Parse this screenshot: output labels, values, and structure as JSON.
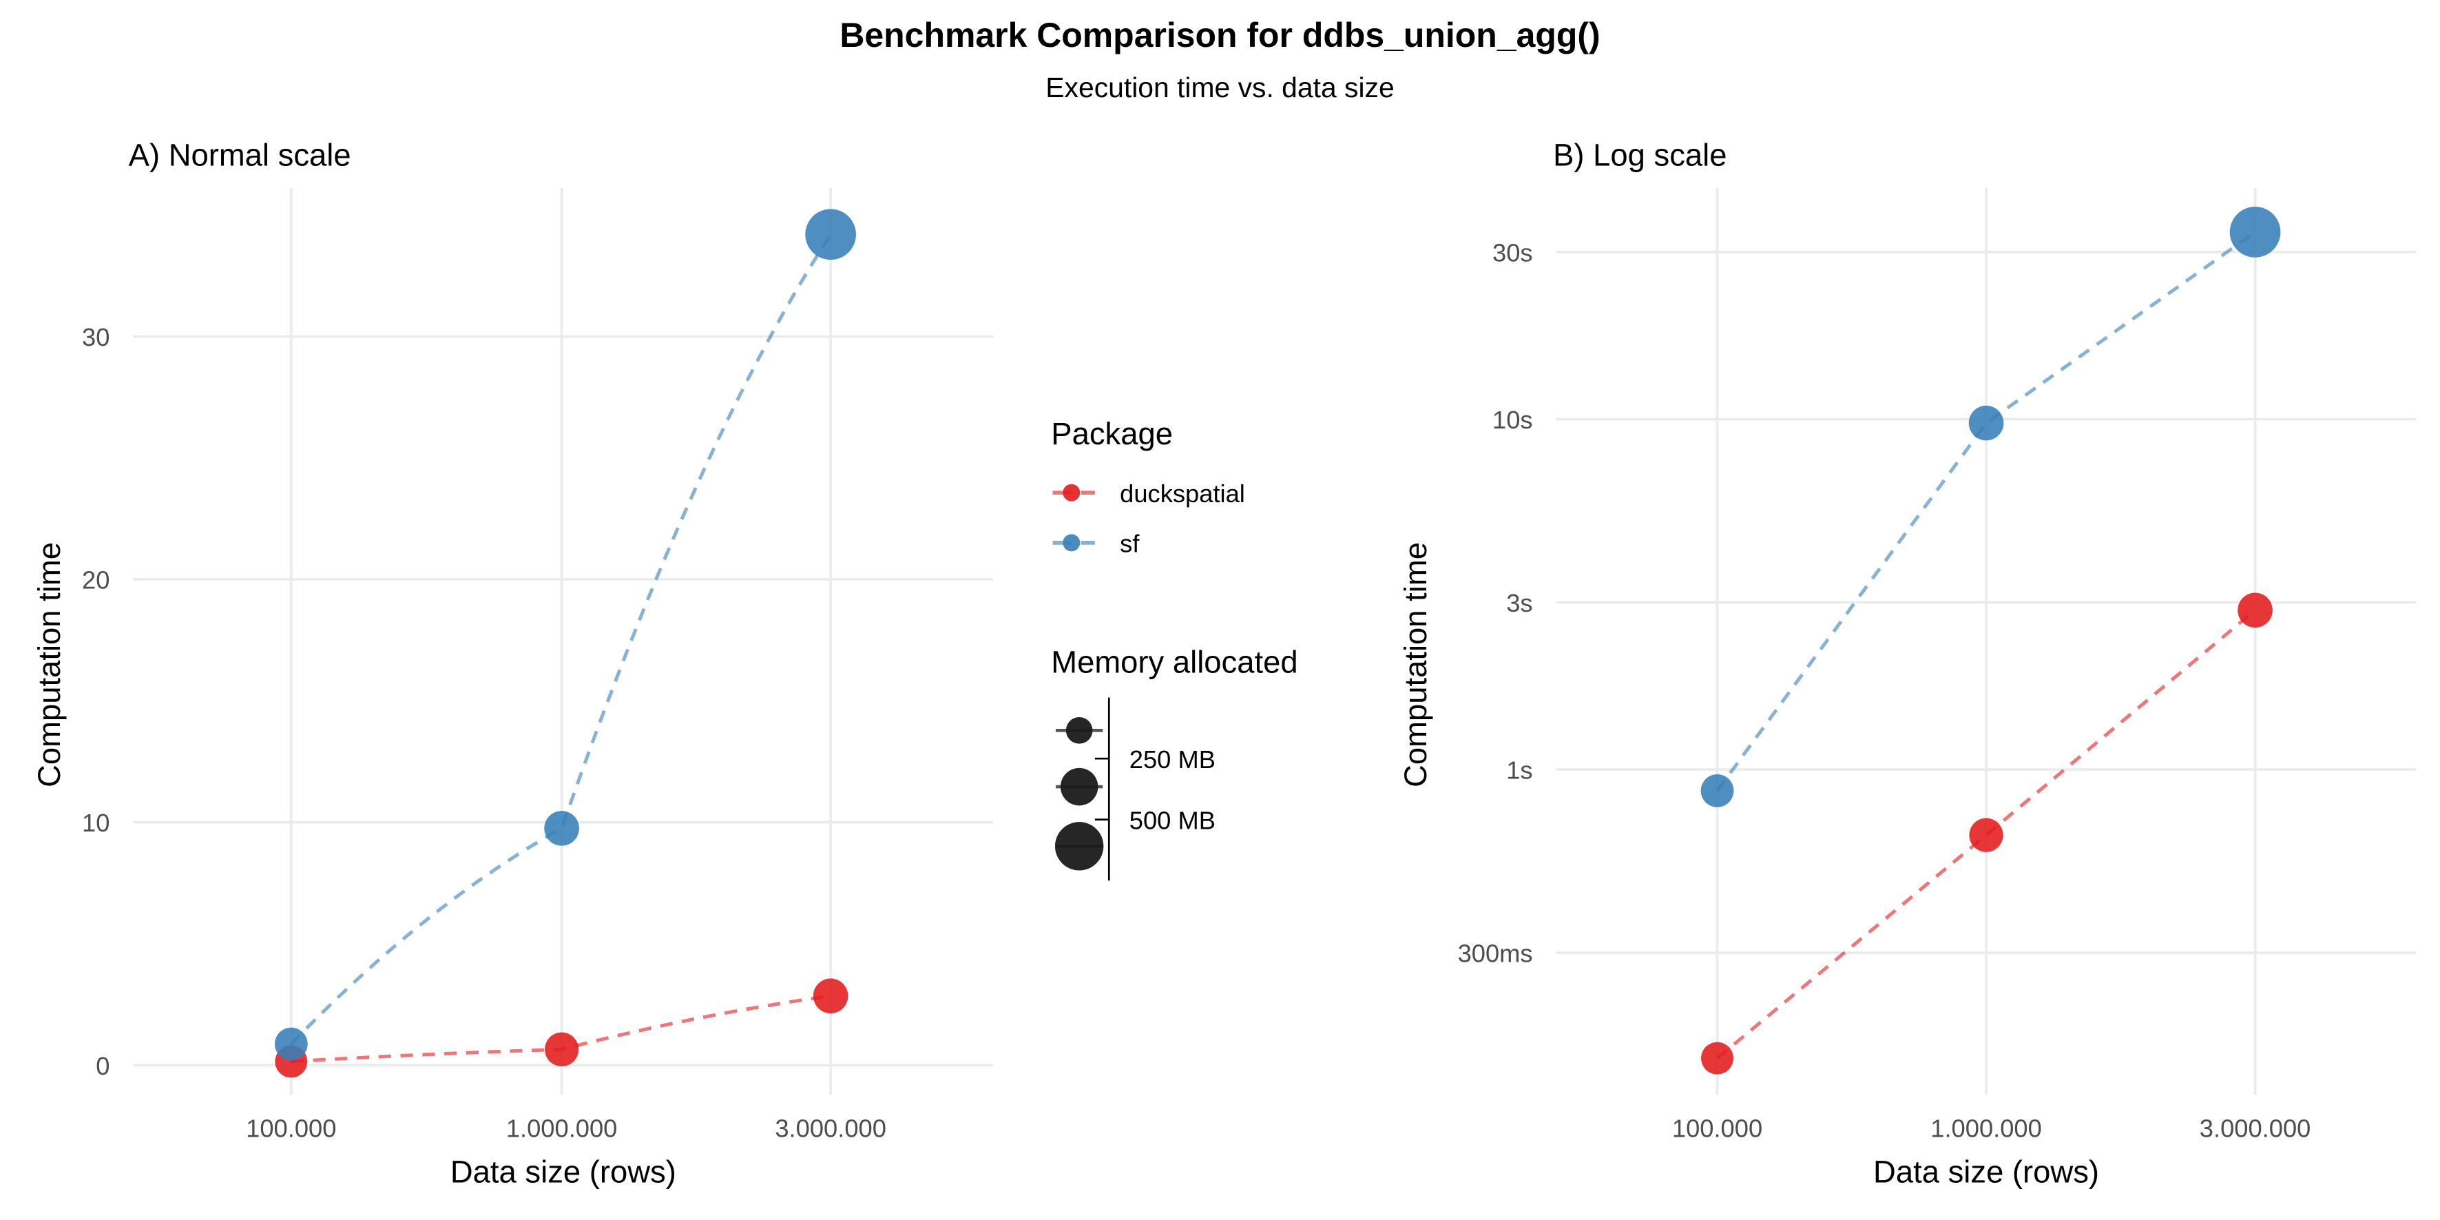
{
  "title": "Benchmark Comparison for ddbs_union_agg()",
  "subtitle": "Execution time vs. data size",
  "colors": {
    "duckspatial": "#E41A1C",
    "sf": "#377EB8"
  },
  "chart_data": [
    {
      "type": "line",
      "title": "A) Normal scale",
      "xlabel": "Data size (rows)",
      "ylabel": "Computation time",
      "x_categories": [
        "100.000",
        "1.000.000",
        "3.000.000"
      ],
      "y_scale": "linear",
      "ylim": [
        -1.6,
        35.5
      ],
      "y_ticks": [
        {
          "value": 0,
          "label": "0"
        },
        {
          "value": 10,
          "label": "10"
        },
        {
          "value": 20,
          "label": "20"
        },
        {
          "value": 30,
          "label": "30"
        }
      ],
      "grid": true,
      "series": [
        {
          "name": "duckspatial",
          "values_s": [
            0.15,
            0.65,
            2.85
          ],
          "memory_mb": [
            60,
            90,
            110
          ]
        },
        {
          "name": "sf",
          "values_s": [
            0.87,
            9.75,
            34.2
          ],
          "memory_mb": [
            70,
            110,
            750
          ]
        }
      ]
    },
    {
      "type": "line",
      "title": "B) Log scale",
      "xlabel": "Data size (rows)",
      "ylabel": "Computation time",
      "x_categories": [
        "100.000",
        "1.000.000",
        "3.000.000"
      ],
      "y_scale": "log",
      "ylim": [
        0.1,
        40
      ],
      "y_ticks": [
        {
          "value": 0.3,
          "label": "300ms"
        },
        {
          "value": 1,
          "label": "1s"
        },
        {
          "value": 3,
          "label": "3s"
        },
        {
          "value": 10,
          "label": "10s"
        },
        {
          "value": 30,
          "label": "30s"
        }
      ],
      "grid": true,
      "series": [
        {
          "name": "duckspatial",
          "values_s": [
            0.15,
            0.65,
            2.85
          ],
          "memory_mb": [
            60,
            90,
            110
          ]
        },
        {
          "name": "sf",
          "values_s": [
            0.87,
            9.75,
            34.2
          ],
          "memory_mb": [
            70,
            110,
            750
          ]
        }
      ]
    }
  ],
  "legend": {
    "package_title": "Package",
    "packages": [
      "duckspatial",
      "sf"
    ],
    "memory_title": "Memory allocated",
    "memory_labels": [
      "250 MB",
      "500 MB"
    ]
  }
}
